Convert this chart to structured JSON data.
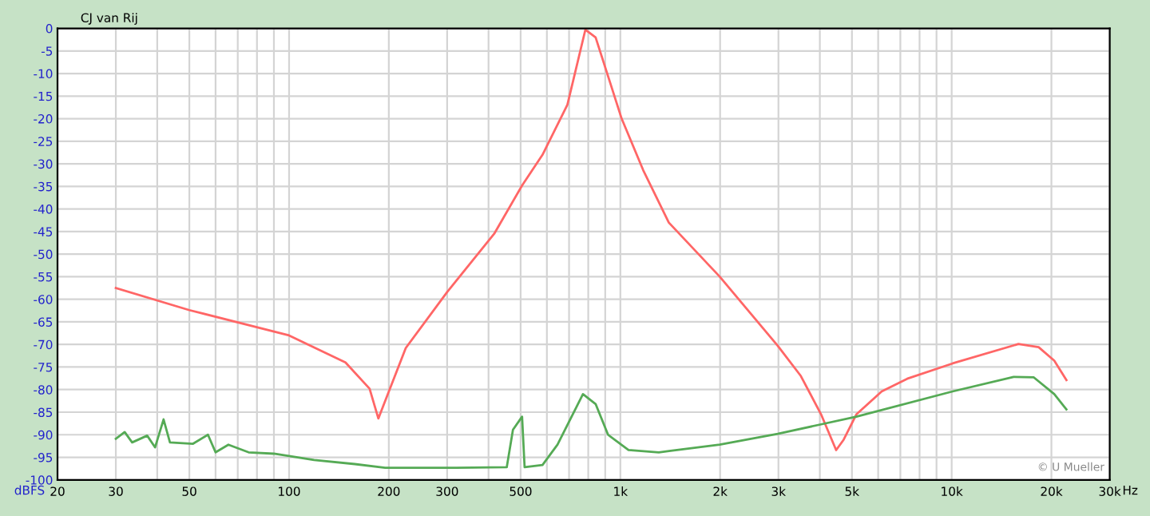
{
  "chart_data": {
    "type": "line",
    "ylabel": "dBFS",
    "xlabel": "Hz",
    "annotations": [
      "CJ van Rij",
      "© U Mueller"
    ],
    "log": "x",
    "grid": true,
    "legend": false,
    "marker": "none",
    "line_style": "solid",
    "xlim": [
      20,
      30000
    ],
    "ylim": [
      -100,
      0
    ],
    "xticks": [
      20,
      30,
      {
        "value": 40,
        "label": null
      },
      50,
      {
        "value": 60,
        "label": null
      },
      {
        "value": 70,
        "label": null
      },
      {
        "value": 80,
        "label": null
      },
      {
        "value": 90,
        "label": null
      },
      100,
      200,
      300,
      {
        "value": 400,
        "label": null
      },
      500,
      {
        "value": 600,
        "label": null
      },
      {
        "value": 700,
        "label": null
      },
      {
        "value": 800,
        "label": null
      },
      {
        "value": 900,
        "label": null
      },
      {
        "value": 1000,
        "label": "1k"
      },
      {
        "value": 2000,
        "label": "2k"
      },
      {
        "value": 3000,
        "label": "3k"
      },
      {
        "value": 4000,
        "label": null
      },
      {
        "value": 5000,
        "label": "5k"
      },
      {
        "value": 6000,
        "label": null
      },
      {
        "value": 7000,
        "label": null
      },
      {
        "value": 8000,
        "label": null
      },
      {
        "value": 9000,
        "label": null
      },
      {
        "value": 10000,
        "label": "10k"
      },
      {
        "value": 20000,
        "label": "20k"
      },
      {
        "value": 30000,
        "label": "30k"
      }
    ],
    "yticks": [
      0,
      -5,
      -10,
      -15,
      -20,
      -25,
      -30,
      -35,
      -40,
      -45,
      -50,
      -55,
      -60,
      -65,
      -70,
      -75,
      -80,
      -85,
      -90,
      -95,
      -100
    ],
    "series": [
      {
        "color": "#ff6666",
        "x": [
          30,
          50,
          100,
          148,
          175,
          186,
          225,
          300,
          416,
          505,
          582,
          692,
          784,
          842,
          1009,
          1172,
          1400,
          1995,
          2985,
          3506,
          4035,
          4480,
          4720,
          5156,
          6150,
          7340,
          10070,
          15900,
          18300,
          20400,
          22200
        ],
        "values": [
          -57.5,
          -62.4,
          -68,
          -74,
          -79.8,
          -86.4,
          -70.8,
          -58.4,
          -45.5,
          -34.8,
          -28,
          -16.9,
          -0.3,
          -2,
          -20,
          -31.4,
          -43,
          -55,
          -70.3,
          -77,
          -85.5,
          -93.4,
          -91.1,
          -85.5,
          -80.4,
          -77.6,
          -74.2,
          -69.9,
          -70.6,
          -73.6,
          -77.9
        ]
      },
      {
        "color": "#55aa55",
        "x": [
          30,
          31.9,
          33.6,
          37.3,
          39.4,
          41.8,
          43.7,
          51.3,
          56.9,
          60,
          65.6,
          75.5,
          90,
          119,
          158,
          195,
          202,
          320,
          454,
          474,
          505,
          514,
          582,
          646,
          771,
          842,
          918,
          1058,
          1306,
          1403,
          1995,
          2985,
          4035,
          5156,
          10070,
          15380,
          17700,
          20400,
          22200
        ],
        "values": [
          -90.9,
          -89.4,
          -91.7,
          -90.2,
          -92.8,
          -86.6,
          -91.7,
          -92,
          -90,
          -93.9,
          -92.2,
          -93.9,
          -94.2,
          -95.6,
          -96.5,
          -97.3,
          -97.3,
          -97.3,
          -97.2,
          -88.9,
          -86,
          -97.2,
          -96.7,
          -92.2,
          -81,
          -83.2,
          -90,
          -93.4,
          -93.9,
          -93.6,
          -92.2,
          -89.8,
          -87.7,
          -86,
          -80.4,
          -77.2,
          -77.3,
          -81,
          -84.4
        ]
      }
    ]
  }
}
